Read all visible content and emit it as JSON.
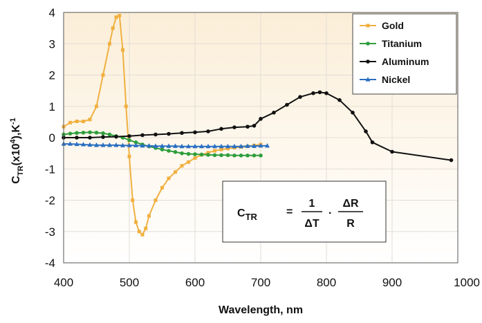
{
  "chart_data": {
    "type": "line",
    "xlabel": "Wavelength, nm",
    "ylabel": {
      "main": "C",
      "main_sub": "TR",
      "paren_open": "(x10",
      "paren_exp": "4",
      "paren_close": "),K",
      "unit_exp": "-1"
    },
    "xlim": [
      400,
      1000
    ],
    "ylim": [
      -4,
      4
    ],
    "xticks": [
      "400",
      "500",
      "600",
      "700",
      "800",
      "900",
      "1000"
    ],
    "yticks": [
      "4",
      "3",
      "2",
      "1",
      "0",
      "-1",
      "-2",
      "-3",
      "-4"
    ],
    "xtick_values": [
      400,
      500,
      600,
      700,
      800,
      900,
      1000
    ],
    "ytick_values": [
      4,
      3,
      2,
      1,
      0,
      -1,
      -2,
      -3,
      -4
    ],
    "grid": true,
    "legend_position": "top-right",
    "series": [
      {
        "name": "Gold",
        "color": "#f0b040",
        "marker": "square",
        "x": [
          400,
          410,
          420,
          430,
          440,
          450,
          460,
          470,
          475,
          480,
          485,
          490,
          495,
          500,
          505,
          510,
          515,
          520,
          525,
          530,
          540,
          550,
          560,
          570,
          580,
          590,
          600,
          610,
          620,
          630,
          640,
          650,
          660,
          670,
          680,
          690,
          700
        ],
        "y": [
          0.35,
          0.48,
          0.52,
          0.52,
          0.58,
          1.0,
          2.0,
          3.0,
          3.5,
          3.85,
          3.9,
          2.8,
          1.0,
          -0.6,
          -2.0,
          -2.7,
          -3.0,
          -3.1,
          -2.9,
          -2.5,
          -2.0,
          -1.6,
          -1.3,
          -1.1,
          -0.9,
          -0.78,
          -0.65,
          -0.55,
          -0.48,
          -0.42,
          -0.38,
          -0.35,
          -0.32,
          -0.3,
          -0.28,
          -0.25,
          -0.22
        ]
      },
      {
        "name": "Titanium",
        "color": "#2e9e3c",
        "marker": "circle",
        "x": [
          400,
          410,
          420,
          430,
          440,
          450,
          460,
          470,
          480,
          490,
          500,
          510,
          520,
          530,
          540,
          550,
          560,
          570,
          580,
          590,
          600,
          610,
          620,
          630,
          640,
          650,
          660,
          670,
          680,
          690,
          700
        ],
        "y": [
          0.1,
          0.13,
          0.15,
          0.16,
          0.17,
          0.16,
          0.14,
          0.1,
          0.05,
          0.0,
          -0.08,
          -0.15,
          -0.22,
          -0.28,
          -0.33,
          -0.38,
          -0.42,
          -0.46,
          -0.5,
          -0.52,
          -0.53,
          -0.54,
          -0.55,
          -0.56,
          -0.56,
          -0.56,
          -0.57,
          -0.57,
          -0.57,
          -0.57,
          -0.57
        ]
      },
      {
        "name": "Aluminum",
        "color": "#111111",
        "marker": "circle",
        "x": [
          400,
          420,
          440,
          460,
          480,
          500,
          520,
          540,
          560,
          580,
          600,
          620,
          640,
          660,
          680,
          690,
          700,
          720,
          740,
          760,
          780,
          790,
          800,
          820,
          840,
          860,
          870,
          900,
          990
        ],
        "y": [
          0.0,
          0.0,
          0.0,
          0.02,
          0.03,
          0.05,
          0.08,
          0.1,
          0.12,
          0.15,
          0.17,
          0.2,
          0.28,
          0.33,
          0.35,
          0.38,
          0.6,
          0.8,
          1.05,
          1.3,
          1.42,
          1.45,
          1.42,
          1.2,
          0.8,
          0.2,
          -0.15,
          -0.45,
          -0.72
        ]
      },
      {
        "name": "Nickel",
        "color": "#2a6fc2",
        "marker": "triangle",
        "x": [
          400,
          410,
          420,
          430,
          440,
          450,
          460,
          470,
          480,
          490,
          500,
          510,
          520,
          530,
          540,
          550,
          560,
          570,
          580,
          590,
          600,
          610,
          620,
          630,
          640,
          650,
          660,
          670,
          680,
          690,
          700,
          710
        ],
        "y": [
          -0.2,
          -0.2,
          -0.21,
          -0.22,
          -0.23,
          -0.24,
          -0.24,
          -0.24,
          -0.24,
          -0.25,
          -0.25,
          -0.25,
          -0.26,
          -0.26,
          -0.27,
          -0.27,
          -0.27,
          -0.27,
          -0.28,
          -0.28,
          -0.28,
          -0.28,
          -0.28,
          -0.28,
          -0.28,
          -0.28,
          -0.28,
          -0.28,
          -0.27,
          -0.27,
          -0.26,
          -0.26
        ]
      }
    ],
    "formula": {
      "lhs": "C",
      "lhs_sub": "TR",
      "equals": "=",
      "frac1_num": "1",
      "frac1_den": "ΔT",
      "dot": "·",
      "frac2_num": "ΔR",
      "frac2_den": "R"
    },
    "colors": {
      "background_top": "#fbeed8",
      "background_bottom": "#ffffff",
      "grid": "#e2ddd6"
    }
  }
}
